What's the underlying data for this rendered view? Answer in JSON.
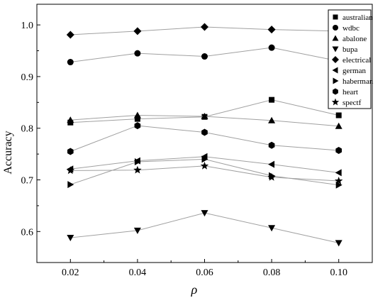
{
  "chart_data": {
    "type": "line",
    "title": "",
    "xlabel": "ρ",
    "ylabel": "Accuracy",
    "x": [
      0.02,
      0.04,
      0.06,
      0.08,
      0.1
    ],
    "x_tick_labels": [
      "0.02",
      "0.04",
      "0.06",
      "0.08",
      "0.10"
    ],
    "xlim": [
      0.01,
      0.11
    ],
    "ylim": [
      0.54,
      1.04
    ],
    "y_ticks": [
      0.6,
      0.7,
      0.8,
      0.9,
      1.0
    ],
    "y_tick_labels": [
      "0.6",
      "0.7",
      "0.8",
      "0.9",
      "1.0"
    ],
    "grid": false,
    "legend_position": "top-right",
    "line_color": "#a0a0a0",
    "marker_color": "#000000",
    "series": [
      {
        "name": "australian",
        "marker": "square",
        "values": [
          0.811,
          0.818,
          0.822,
          0.855,
          0.825
        ]
      },
      {
        "name": "wdbc",
        "marker": "circle",
        "values": [
          0.928,
          0.945,
          0.939,
          0.956,
          0.93
        ]
      },
      {
        "name": "abalone",
        "marker": "triangle-up",
        "values": [
          0.816,
          0.825,
          0.823,
          0.815,
          0.804
        ]
      },
      {
        "name": "bupa",
        "marker": "triangle-down",
        "values": [
          0.588,
          0.602,
          0.636,
          0.607,
          0.578
        ]
      },
      {
        "name": "electrical",
        "marker": "diamond",
        "values": [
          0.981,
          0.988,
          0.996,
          0.991,
          0.988
        ]
      },
      {
        "name": "german",
        "marker": "triangle-left",
        "values": [
          0.721,
          0.737,
          0.745,
          0.73,
          0.714
        ]
      },
      {
        "name": "haberman",
        "marker": "triangle-right",
        "values": [
          0.691,
          0.735,
          0.74,
          0.708,
          0.69
        ]
      },
      {
        "name": "heart",
        "marker": "hexagon",
        "values": [
          0.755,
          0.805,
          0.792,
          0.767,
          0.757
        ]
      },
      {
        "name": "spectf",
        "marker": "star",
        "values": [
          0.718,
          0.719,
          0.727,
          0.705,
          0.698
        ]
      }
    ]
  }
}
